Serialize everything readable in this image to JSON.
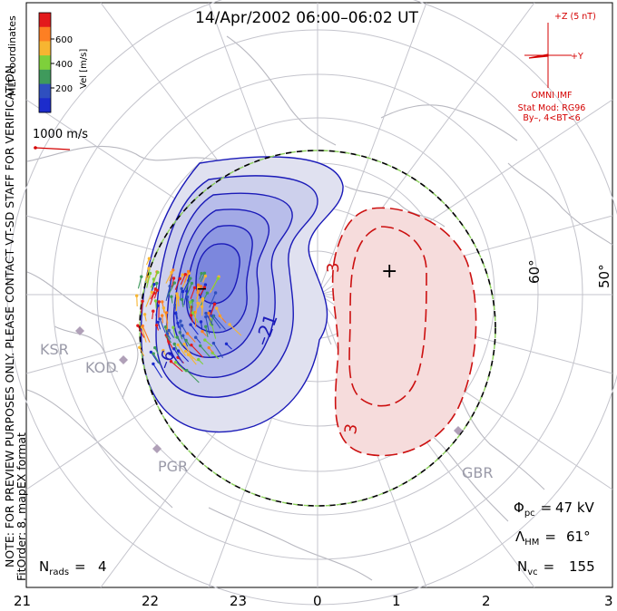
{
  "title": "14/Apr/2002  06:00–06:02  UT",
  "coord_label": "MLT coordinates",
  "velocity_scale": {
    "label": "Vel [m/s]",
    "ticks": [
      "600",
      "400",
      "200"
    ],
    "colors": [
      "#e31a1c",
      "#fd7f23",
      "#f7b531",
      "#7ed03b",
      "#3f9a5c",
      "#2f4fbf",
      "#1c2ccc"
    ]
  },
  "reference_vector": "1000 m/s",
  "imf": {
    "z_label": "+Z (5 nT)",
    "y_label": "+Y",
    "source": "OMNI IMF",
    "stat_mod": "Stat Mod: RG96",
    "conditions": "By–, 4<BT<6"
  },
  "preview_notice": "NOTE: FOR PREVIEW PURPOSES ONLY. PLEASE CONTACT VT-SD STAFF FOR VERIFICATION.",
  "fit_order": "FitOrder: 8, mapEX format",
  "latitude_labels": [
    "60°",
    "50°"
  ],
  "stations": [
    "KSR",
    "KOD",
    "PGR",
    "GBR"
  ],
  "contours": {
    "negative_labels": [
      "–",
      "–21",
      "–6"
    ],
    "positive_labels": [
      "+",
      "3",
      "3"
    ]
  },
  "stats": {
    "phi_pc": "47 kV",
    "lambda_hm": "61°",
    "n_vc": "155",
    "n_rads": "4"
  },
  "mlt_axis": [
    "21",
    "22",
    "23",
    "0",
    "1",
    "2",
    "3"
  ],
  "colors": {
    "negative_contour": "#1a1ab8",
    "positive_contour": "#cc1010",
    "hm_boundary": "#8bd05a",
    "annotation_red": "#d40000"
  }
}
